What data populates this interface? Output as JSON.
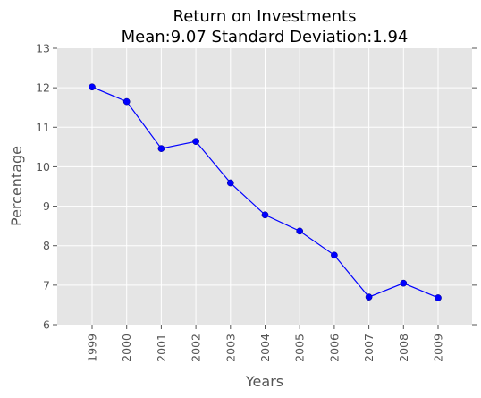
{
  "chart_data": {
    "type": "line",
    "title": "Return on Investments",
    "subtitle": "Mean:9.07 Standard Deviation:1.94",
    "xlabel": "Years",
    "ylabel": "Percentage",
    "categories": [
      "1999",
      "2000",
      "2001",
      "2002",
      "2003",
      "2004",
      "2005",
      "2006",
      "2007",
      "2008",
      "2009"
    ],
    "series": [
      {
        "values": [
          12.02,
          11.65,
          10.46,
          10.64,
          9.59,
          8.78,
          8.37,
          7.76,
          6.7,
          7.05,
          6.68
        ]
      }
    ],
    "ylim": [
      6,
      13
    ],
    "yticks": [
      "6",
      "7",
      "8",
      "9",
      "10",
      "11",
      "12",
      "13"
    ],
    "grid": true,
    "colors": {
      "line": "#0000ff",
      "marker": "#0000ff",
      "plot_background": "#e5e5e5",
      "grid": "#ffffff"
    }
  }
}
